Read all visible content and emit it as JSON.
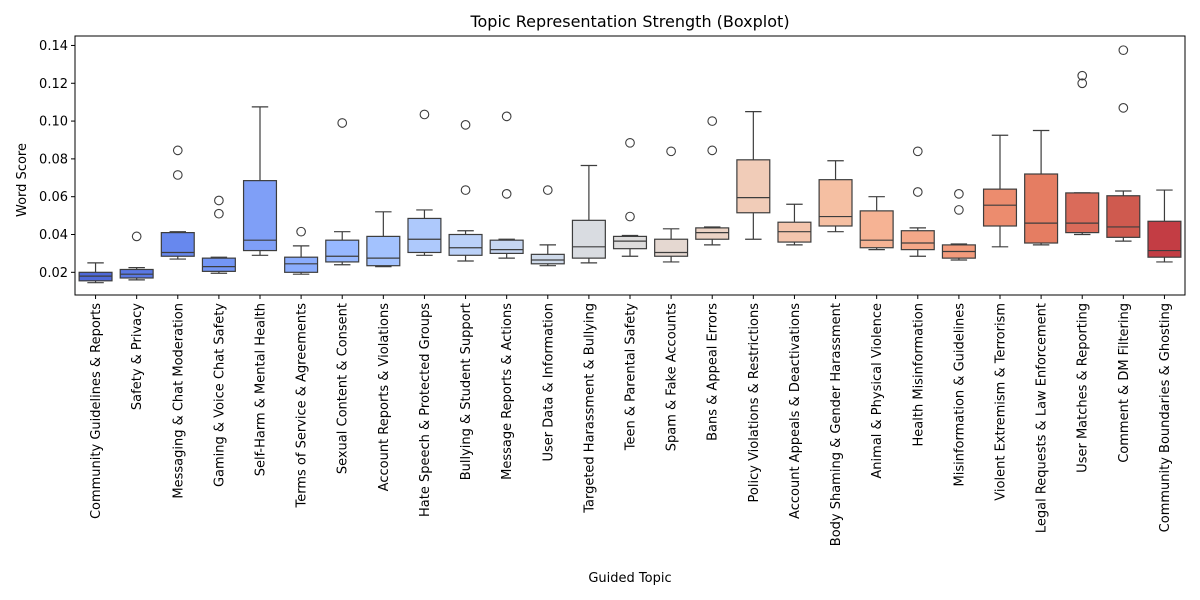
{
  "chart_data": {
    "type": "boxplot",
    "title": "Topic Representation Strength (Boxplot)",
    "xlabel": "Guided Topic",
    "ylabel": "Word Score",
    "ylim": [
      0.008,
      0.145
    ],
    "yticks": [
      0.02,
      0.04,
      0.06,
      0.08,
      0.1,
      0.12,
      0.14
    ],
    "ytick_labels": [
      "0.02",
      "0.04",
      "0.06",
      "0.08",
      "0.10",
      "0.12",
      "0.14"
    ],
    "grid": false,
    "legend": "none",
    "categories": [
      "Community Guidelines & Reports",
      "Safety & Privacy",
      "Messaging & Chat Moderation",
      "Gaming & Voice Chat Safety",
      "Self-Harm & Mental Health",
      "Terms of Service & Agreements",
      "Sexual Content & Consent",
      "Account Reports & Violations",
      "Hate Speech & Protected Groups",
      "Bullying & Student Support",
      "Message Reports & Actions",
      "User Data & Information",
      "Targeted Harassment & Bullying",
      "Teen & Parental Safety",
      "Spam & Fake Accounts",
      "Bans & Appeal Errors",
      "Policy Violations & Restrictions",
      "Account Appeals & Deactivations",
      "Body Shaming & Gender Harassment",
      "Animal & Physical Violence",
      "Health Misinformation",
      "Misinformation & Guidelines",
      "Violent Extremism & Terrorism",
      "Legal Requests & Law Enforcement",
      "User Matches & Reporting",
      "Comment & DM Filtering",
      "Community Boundaries & Ghosting"
    ],
    "boxes": [
      {
        "whislo": 0.0145,
        "q1": 0.0155,
        "med": 0.018,
        "q3": 0.02,
        "whishi": 0.025,
        "fliers": []
      },
      {
        "whislo": 0.016,
        "q1": 0.017,
        "med": 0.019,
        "q3": 0.0215,
        "whishi": 0.0225,
        "fliers": [
          0.039
        ]
      },
      {
        "whislo": 0.027,
        "q1": 0.0285,
        "med": 0.0305,
        "q3": 0.041,
        "whishi": 0.0415,
        "fliers": [
          0.0715,
          0.0845
        ]
      },
      {
        "whislo": 0.0195,
        "q1": 0.0205,
        "med": 0.023,
        "q3": 0.0275,
        "whishi": 0.028,
        "fliers": [
          0.051,
          0.058
        ]
      },
      {
        "whislo": 0.029,
        "q1": 0.0315,
        "med": 0.037,
        "q3": 0.0685,
        "whishi": 0.1075,
        "fliers": []
      },
      {
        "whislo": 0.019,
        "q1": 0.02,
        "med": 0.0245,
        "q3": 0.028,
        "whishi": 0.034,
        "fliers": [
          0.0415
        ]
      },
      {
        "whislo": 0.024,
        "q1": 0.0255,
        "med": 0.0285,
        "q3": 0.037,
        "whishi": 0.0415,
        "fliers": [
          0.099
        ]
      },
      {
        "whislo": 0.023,
        "q1": 0.0235,
        "med": 0.0275,
        "q3": 0.039,
        "whishi": 0.052,
        "fliers": []
      },
      {
        "whislo": 0.029,
        "q1": 0.0305,
        "med": 0.0375,
        "q3": 0.0485,
        "whishi": 0.053,
        "fliers": [
          0.1035
        ]
      },
      {
        "whislo": 0.026,
        "q1": 0.029,
        "med": 0.033,
        "q3": 0.04,
        "whishi": 0.042,
        "fliers": [
          0.0635,
          0.098
        ]
      },
      {
        "whislo": 0.0275,
        "q1": 0.03,
        "med": 0.032,
        "q3": 0.037,
        "whishi": 0.0375,
        "fliers": [
          0.0615,
          0.1025
        ]
      },
      {
        "whislo": 0.0235,
        "q1": 0.0245,
        "med": 0.0265,
        "q3": 0.0295,
        "whishi": 0.0345,
        "fliers": [
          0.0635
        ]
      },
      {
        "whislo": 0.025,
        "q1": 0.0275,
        "med": 0.0335,
        "q3": 0.0475,
        "whishi": 0.0765,
        "fliers": []
      },
      {
        "whislo": 0.0285,
        "q1": 0.0325,
        "med": 0.0365,
        "q3": 0.039,
        "whishi": 0.0395,
        "fliers": [
          0.0495,
          0.0885
        ]
      },
      {
        "whislo": 0.0255,
        "q1": 0.0285,
        "med": 0.0305,
        "q3": 0.0375,
        "whishi": 0.043,
        "fliers": [
          0.084
        ]
      },
      {
        "whislo": 0.0345,
        "q1": 0.0375,
        "med": 0.041,
        "q3": 0.0435,
        "whishi": 0.044,
        "fliers": [
          0.0845,
          0.1
        ]
      },
      {
        "whislo": 0.0375,
        "q1": 0.0515,
        "med": 0.0595,
        "q3": 0.0795,
        "whishi": 0.105,
        "fliers": []
      },
      {
        "whislo": 0.0345,
        "q1": 0.036,
        "med": 0.0415,
        "q3": 0.0465,
        "whishi": 0.056,
        "fliers": []
      },
      {
        "whislo": 0.0415,
        "q1": 0.0445,
        "med": 0.0495,
        "q3": 0.069,
        "whishi": 0.079,
        "fliers": []
      },
      {
        "whislo": 0.032,
        "q1": 0.033,
        "med": 0.037,
        "q3": 0.0525,
        "whishi": 0.06,
        "fliers": []
      },
      {
        "whislo": 0.0285,
        "q1": 0.032,
        "med": 0.0355,
        "q3": 0.042,
        "whishi": 0.0435,
        "fliers": [
          0.0625,
          0.084
        ]
      },
      {
        "whislo": 0.0265,
        "q1": 0.0275,
        "med": 0.031,
        "q3": 0.0345,
        "whishi": 0.035,
        "fliers": [
          0.053,
          0.0615
        ]
      },
      {
        "whislo": 0.0335,
        "q1": 0.0445,
        "med": 0.0555,
        "q3": 0.064,
        "whishi": 0.0925,
        "fliers": []
      },
      {
        "whislo": 0.0345,
        "q1": 0.0355,
        "med": 0.046,
        "q3": 0.072,
        "whishi": 0.095,
        "fliers": []
      },
      {
        "whislo": 0.04,
        "q1": 0.041,
        "med": 0.046,
        "q3": 0.062,
        "whishi": 0.062,
        "fliers": [
          0.12,
          0.124
        ]
      },
      {
        "whislo": 0.0365,
        "q1": 0.0385,
        "med": 0.044,
        "q3": 0.0605,
        "whishi": 0.063,
        "fliers": [
          0.107,
          0.1375
        ]
      },
      {
        "whislo": 0.0255,
        "q1": 0.028,
        "med": 0.0315,
        "q3": 0.047,
        "whishi": 0.0635,
        "fliers": []
      }
    ],
    "colors": [
      "#4f69d9",
      "#5a78e4",
      "#6788ee",
      "#7396f5",
      "#7f9ff7",
      "#8badfd",
      "#97b8ff",
      "#a3c2fe",
      "#aec9fc",
      "#bbd1f8",
      "#c6d6f1",
      "#cfdaea",
      "#d9dce1",
      "#dddcdc",
      "#e5d8d1",
      "#ecd3c5",
      "#f1ccb8",
      "#f4c5ad",
      "#f5bfa2",
      "#f6b394",
      "#f4a889",
      "#f29b7c",
      "#ec8c6e",
      "#e57d62",
      "#da6b5a",
      "#cf5a4f",
      "#c33d44"
    ]
  }
}
